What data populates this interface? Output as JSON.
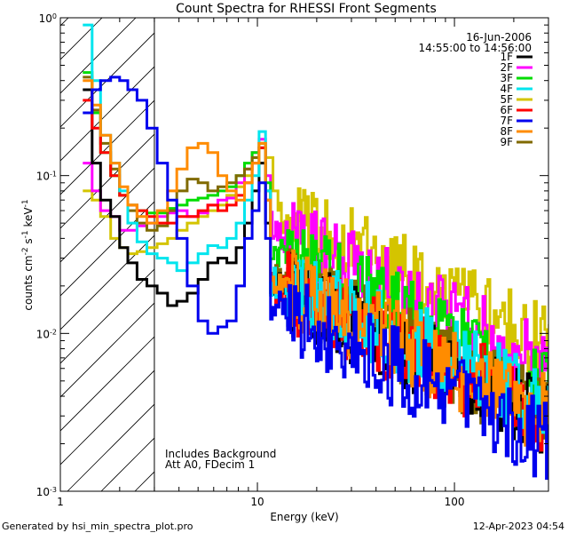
{
  "chart_data": {
    "type": "line",
    "title": "Count Spectra for RHESSI Front Segments",
    "xlabel": "Energy (keV)",
    "ylabel_parts": {
      "base": "counts cm",
      "sup1": "-2",
      "mid": " s",
      "sup2": "-1",
      "unit": " keV",
      "sup3": "-1"
    },
    "xscale": "log",
    "yscale": "log",
    "xlim": [
      1.0,
      300.0
    ],
    "ylim": [
      0.001,
      1.0
    ],
    "x_ticks": [
      {
        "value": 1,
        "label": "1"
      },
      {
        "value": 10,
        "label": "10"
      },
      {
        "value": 100,
        "label": "100"
      }
    ],
    "y_ticks": [
      {
        "value": 0.001,
        "base": "10",
        "exp": "-3"
      },
      {
        "value": 0.01,
        "base": "10",
        "exp": "-2"
      },
      {
        "value": 0.1,
        "base": "10",
        "exp": "-1"
      },
      {
        "value": 1,
        "base": "10",
        "exp": "0"
      }
    ],
    "date": "16-Jun-2006",
    "time_range": "14:55:00 to 14:56:00",
    "hatched_region_max_kev": 3.0,
    "annotations": [
      "Includes Background",
      "Att A0, FDecim 1"
    ],
    "footer_left": "Generated by hsi_min_spectra_plot.pro",
    "footer_right": "12-Apr-2023 04:54",
    "series": [
      {
        "name": "1F",
        "color": "#000000",
        "low": [
          [
            1.3,
            0.35
          ],
          [
            1.45,
            0.12
          ],
          [
            1.6,
            0.07
          ],
          [
            1.8,
            0.055
          ],
          [
            2.0,
            0.035
          ],
          [
            2.2,
            0.028
          ],
          [
            2.45,
            0.022
          ],
          [
            2.75,
            0.02
          ],
          [
            3.1,
            0.018
          ],
          [
            3.5,
            0.015
          ],
          [
            3.9,
            0.016
          ],
          [
            4.4,
            0.018
          ],
          [
            5.0,
            0.022
          ],
          [
            5.6,
            0.028
          ],
          [
            6.3,
            0.03
          ],
          [
            7.0,
            0.028
          ],
          [
            7.8,
            0.035
          ],
          [
            8.6,
            0.05
          ],
          [
            9.4,
            0.08
          ],
          [
            10.2,
            0.12
          ],
          [
            11.0,
            0.05
          ]
        ],
        "mid": 0.02,
        "high": 0.003
      },
      {
        "name": "2F",
        "color": "#ff00ff",
        "low": [
          [
            1.3,
            0.12
          ],
          [
            1.45,
            0.08
          ],
          [
            1.6,
            0.06
          ],
          [
            1.8,
            0.055
          ],
          [
            2.0,
            0.045
          ],
          [
            2.2,
            0.045
          ],
          [
            2.45,
            0.048
          ],
          [
            2.75,
            0.05
          ],
          [
            3.1,
            0.055
          ],
          [
            3.5,
            0.058
          ],
          [
            3.9,
            0.06
          ],
          [
            4.4,
            0.055
          ],
          [
            5.0,
            0.058
          ],
          [
            5.6,
            0.065
          ],
          [
            6.3,
            0.07
          ],
          [
            7.0,
            0.072
          ],
          [
            7.8,
            0.09
          ],
          [
            8.6,
            0.11
          ],
          [
            9.4,
            0.14
          ],
          [
            10.2,
            0.17
          ],
          [
            11.0,
            0.1
          ]
        ],
        "mid": 0.045,
        "high": 0.006
      },
      {
        "name": "3F",
        "color": "#00dd00",
        "low": [
          [
            1.3,
            0.45
          ],
          [
            1.45,
            0.25
          ],
          [
            1.6,
            0.14
          ],
          [
            1.8,
            0.1
          ],
          [
            2.0,
            0.075
          ],
          [
            2.2,
            0.065
          ],
          [
            2.45,
            0.06
          ],
          [
            2.75,
            0.058
          ],
          [
            3.1,
            0.058
          ],
          [
            3.5,
            0.062
          ],
          [
            3.9,
            0.065
          ],
          [
            4.4,
            0.07
          ],
          [
            5.0,
            0.072
          ],
          [
            5.6,
            0.075
          ],
          [
            6.3,
            0.08
          ],
          [
            7.0,
            0.085
          ],
          [
            7.8,
            0.1
          ],
          [
            8.6,
            0.12
          ],
          [
            9.4,
            0.14
          ],
          [
            10.2,
            0.16
          ],
          [
            11.0,
            0.09
          ]
        ],
        "mid": 0.035,
        "high": 0.004
      },
      {
        "name": "4F",
        "color": "#00e5ee",
        "low": [
          [
            1.3,
            0.9
          ],
          [
            1.45,
            0.4
          ],
          [
            1.6,
            0.18
          ],
          [
            1.8,
            0.12
          ],
          [
            2.0,
            0.08
          ],
          [
            2.2,
            0.05
          ],
          [
            2.45,
            0.038
          ],
          [
            2.75,
            0.032
          ],
          [
            3.1,
            0.03
          ],
          [
            3.5,
            0.028
          ],
          [
            3.9,
            0.025
          ],
          [
            4.4,
            0.028
          ],
          [
            5.0,
            0.032
          ],
          [
            5.6,
            0.036
          ],
          [
            6.3,
            0.035
          ],
          [
            7.0,
            0.04
          ],
          [
            7.8,
            0.05
          ],
          [
            8.6,
            0.07
          ],
          [
            9.4,
            0.1
          ],
          [
            10.2,
            0.19
          ],
          [
            11.0,
            0.08
          ]
        ],
        "mid": 0.022,
        "high": 0.0035
      },
      {
        "name": "5F",
        "color": "#d4c400",
        "low": [
          [
            1.3,
            0.08
          ],
          [
            1.45,
            0.07
          ],
          [
            1.6,
            0.055
          ],
          [
            1.8,
            0.04
          ],
          [
            2.0,
            0.035
          ],
          [
            2.2,
            0.032
          ],
          [
            2.45,
            0.033
          ],
          [
            2.75,
            0.035
          ],
          [
            3.1,
            0.037
          ],
          [
            3.5,
            0.04
          ],
          [
            3.9,
            0.045
          ],
          [
            4.4,
            0.05
          ],
          [
            5.0,
            0.055
          ],
          [
            5.6,
            0.06
          ],
          [
            6.3,
            0.065
          ],
          [
            7.0,
            0.075
          ],
          [
            7.8,
            0.085
          ],
          [
            8.6,
            0.1
          ],
          [
            9.4,
            0.13
          ],
          [
            10.2,
            0.16
          ],
          [
            11.0,
            0.13
          ],
          [
            12.0,
            0.08
          ]
        ],
        "mid": 0.06,
        "high": 0.008
      },
      {
        "name": "6F",
        "color": "#ff0000",
        "low": [
          [
            1.3,
            0.3
          ],
          [
            1.45,
            0.2
          ],
          [
            1.6,
            0.14
          ],
          [
            1.8,
            0.1
          ],
          [
            2.0,
            0.075
          ],
          [
            2.2,
            0.065
          ],
          [
            2.45,
            0.06
          ],
          [
            2.75,
            0.055
          ],
          [
            3.1,
            0.05
          ],
          [
            3.5,
            0.05
          ],
          [
            3.9,
            0.055
          ],
          [
            4.4,
            0.055
          ],
          [
            5.0,
            0.06
          ],
          [
            5.6,
            0.065
          ],
          [
            6.3,
            0.06
          ],
          [
            7.0,
            0.065
          ],
          [
            7.8,
            0.075
          ],
          [
            8.6,
            0.09
          ],
          [
            9.4,
            0.12
          ],
          [
            10.2,
            0.15
          ],
          [
            11.0,
            0.07
          ]
        ],
        "mid": 0.02,
        "high": 0.003
      },
      {
        "name": "7F",
        "color": "#0000ee",
        "low": [
          [
            1.3,
            0.25
          ],
          [
            1.45,
            0.35
          ],
          [
            1.6,
            0.4
          ],
          [
            1.8,
            0.42
          ],
          [
            2.0,
            0.4
          ],
          [
            2.2,
            0.35
          ],
          [
            2.45,
            0.3
          ],
          [
            2.75,
            0.2
          ],
          [
            3.1,
            0.12
          ],
          [
            3.5,
            0.07
          ],
          [
            3.9,
            0.04
          ],
          [
            4.4,
            0.02
          ],
          [
            5.0,
            0.012
          ],
          [
            5.6,
            0.01
          ],
          [
            6.3,
            0.011
          ],
          [
            7.0,
            0.012
          ],
          [
            7.8,
            0.02
          ],
          [
            8.6,
            0.04
          ],
          [
            9.4,
            0.06
          ],
          [
            10.2,
            0.09
          ],
          [
            11.0,
            0.04
          ]
        ],
        "mid": 0.015,
        "high": 0.002
      },
      {
        "name": "8F",
        "color": "#ff8c00",
        "low": [
          [
            1.3,
            0.4
          ],
          [
            1.45,
            0.28
          ],
          [
            1.6,
            0.18
          ],
          [
            1.8,
            0.12
          ],
          [
            2.0,
            0.085
          ],
          [
            2.2,
            0.065
          ],
          [
            2.45,
            0.055
          ],
          [
            2.75,
            0.05
          ],
          [
            3.1,
            0.06
          ],
          [
            3.5,
            0.08
          ],
          [
            3.9,
            0.11
          ],
          [
            4.4,
            0.15
          ],
          [
            5.0,
            0.16
          ],
          [
            5.6,
            0.14
          ],
          [
            6.3,
            0.1
          ],
          [
            7.0,
            0.08
          ],
          [
            7.8,
            0.07
          ],
          [
            8.6,
            0.09
          ],
          [
            9.4,
            0.12
          ],
          [
            10.2,
            0.16
          ],
          [
            11.0,
            0.07
          ]
        ],
        "mid": 0.022,
        "high": 0.003
      },
      {
        "name": "9F",
        "color": "#806a00",
        "low": [
          [
            1.3,
            0.42
          ],
          [
            1.45,
            0.26
          ],
          [
            1.6,
            0.16
          ],
          [
            1.8,
            0.11
          ],
          [
            2.0,
            0.075
          ],
          [
            2.2,
            0.06
          ],
          [
            2.45,
            0.05
          ],
          [
            2.75,
            0.045
          ],
          [
            3.1,
            0.048
          ],
          [
            3.5,
            0.06
          ],
          [
            3.9,
            0.08
          ],
          [
            4.4,
            0.095
          ],
          [
            5.0,
            0.09
          ],
          [
            5.6,
            0.08
          ],
          [
            6.3,
            0.085
          ],
          [
            7.0,
            0.09
          ],
          [
            7.8,
            0.1
          ],
          [
            8.6,
            0.11
          ],
          [
            9.4,
            0.13
          ],
          [
            10.2,
            0.15
          ],
          [
            11.0,
            0.08
          ]
        ],
        "mid": 0.022,
        "high": 0.003
      }
    ]
  }
}
